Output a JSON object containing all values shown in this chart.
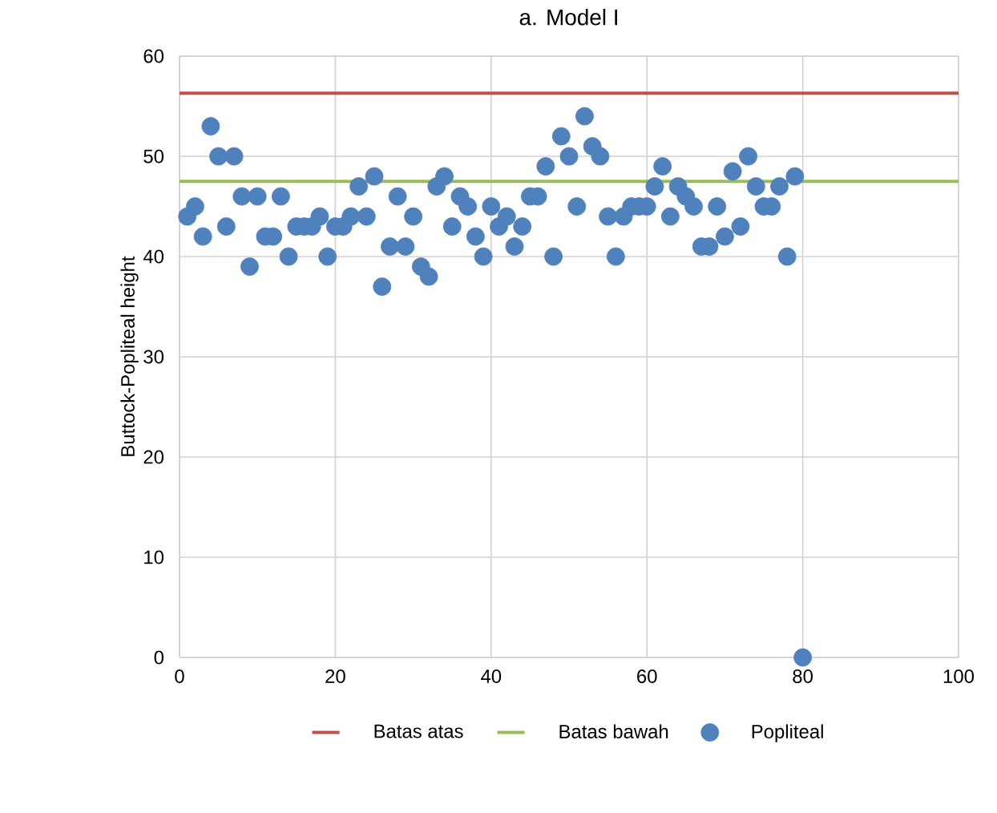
{
  "chart_data": {
    "type": "scatter",
    "title": "a. Model I",
    "ylabel": "Buttock-Popliteal height",
    "xlim": [
      0,
      100
    ],
    "xticks": [
      0,
      20,
      40,
      60,
      80,
      100
    ],
    "ylim": [
      0,
      60
    ],
    "yticks": [
      0,
      10,
      20,
      30,
      40,
      50,
      60
    ],
    "grid": true,
    "legend": "bottom",
    "marker": "circle",
    "series": [
      {
        "name": "Batas atas",
        "type": "line",
        "color": "#c0504d",
        "marker": "none",
        "line_style": "solid",
        "x": [
          0,
          100
        ],
        "values": [
          56.3,
          56.3
        ]
      },
      {
        "name": "Batas bawah",
        "type": "line",
        "color": "#9bbb59",
        "marker": "none",
        "line_style": "solid",
        "x": [
          0,
          100
        ],
        "values": [
          47.5,
          47.5
        ]
      },
      {
        "name": "Popliteal",
        "color": "#4f81bd",
        "x": [
          1,
          2,
          3,
          4,
          5,
          6,
          7,
          8,
          9,
          10,
          11,
          12,
          13,
          14,
          15,
          16,
          17,
          18,
          19,
          20,
          21,
          22,
          23,
          24,
          25,
          26,
          27,
          28,
          29,
          30,
          31,
          32,
          33,
          34,
          35,
          36,
          37,
          38,
          39,
          40,
          41,
          42,
          43,
          44,
          45,
          46,
          47,
          48,
          49,
          50,
          51,
          52,
          53,
          54,
          55,
          56,
          57,
          58,
          59,
          60,
          61,
          62,
          63,
          64,
          65,
          66,
          67,
          68,
          69,
          70,
          71,
          72,
          73,
          74,
          75,
          76,
          77,
          78,
          79,
          80
        ],
        "values": [
          44,
          45,
          42,
          53,
          50,
          43,
          50,
          46,
          39,
          46,
          42,
          42,
          46,
          40,
          43,
          43,
          43,
          44,
          40,
          43,
          43,
          44,
          47,
          44,
          48,
          37,
          41,
          46,
          41,
          44,
          39,
          38,
          47,
          48,
          43,
          46,
          45,
          42,
          40,
          45,
          43,
          44,
          41,
          43,
          46,
          46,
          49,
          40,
          52,
          50,
          45,
          54,
          51,
          50,
          44,
          40,
          44,
          45,
          45,
          45,
          47,
          49,
          44,
          47,
          46,
          45,
          41,
          41,
          45,
          42,
          48.5,
          43,
          50,
          47,
          45,
          45,
          47,
          40,
          48,
          0
        ]
      }
    ]
  }
}
